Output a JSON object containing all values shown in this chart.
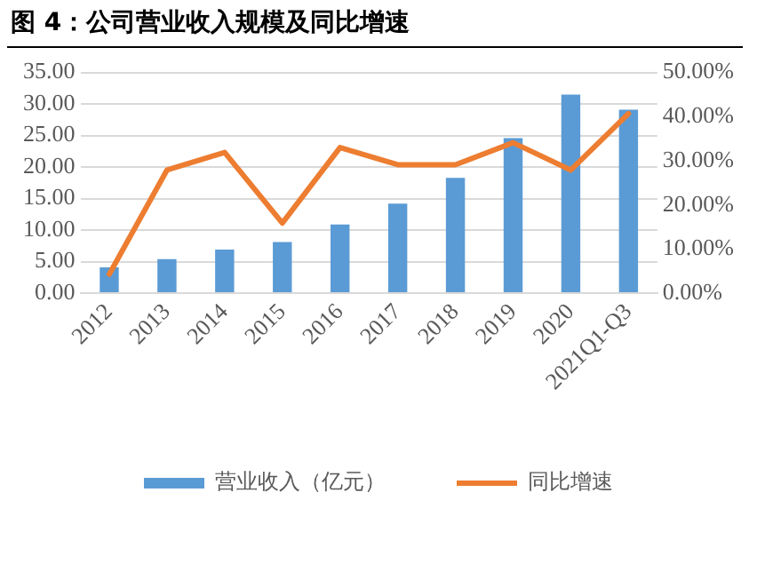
{
  "chart_data": {
    "type": "bar",
    "title": "图 4：公司营业收入规模及同比增速",
    "categories": [
      "2012",
      "2013",
      "2014",
      "2015",
      "2016",
      "2017",
      "2018",
      "2019",
      "2020",
      "2021Q1-Q3"
    ],
    "series": [
      {
        "name": "营业收入（亿元）",
        "color": "#5b9bd5",
        "values": [
          4.1,
          5.4,
          6.9,
          8.1,
          10.9,
          14.2,
          18.3,
          24.6,
          31.5,
          29.1
        ]
      },
      {
        "name": "同比增速",
        "type": "line",
        "axis": "y2",
        "color": "#ed7d31",
        "values": [
          4.3,
          27.9,
          31.9,
          15.9,
          33.0,
          29.1,
          29.1,
          34.1,
          27.9,
          40.7
        ]
      }
    ],
    "ylim": [
      0,
      35
    ],
    "yticks": [
      {
        "value": 0,
        "label": "0.00"
      },
      {
        "value": 5,
        "label": "5.00"
      },
      {
        "value": 10,
        "label": "10.00"
      },
      {
        "value": 15,
        "label": "15.00"
      },
      {
        "value": 20,
        "label": "20.00"
      },
      {
        "value": 25,
        "label": "25.00"
      },
      {
        "value": 30,
        "label": "30.00"
      },
      {
        "value": 35,
        "label": "35.00"
      }
    ],
    "y2lim": [
      0,
      50
    ],
    "y2ticks": [
      {
        "value": 0,
        "label": "0.00%"
      },
      {
        "value": 10,
        "label": "10.00%"
      },
      {
        "value": 20,
        "label": "20.00%"
      },
      {
        "value": 30,
        "label": "30.00%"
      },
      {
        "value": 40,
        "label": "40.00%"
      },
      {
        "value": 50,
        "label": "50.00%"
      }
    ],
    "grid": "y",
    "legend": "bottom",
    "marker": "none",
    "line_style": "solid"
  }
}
